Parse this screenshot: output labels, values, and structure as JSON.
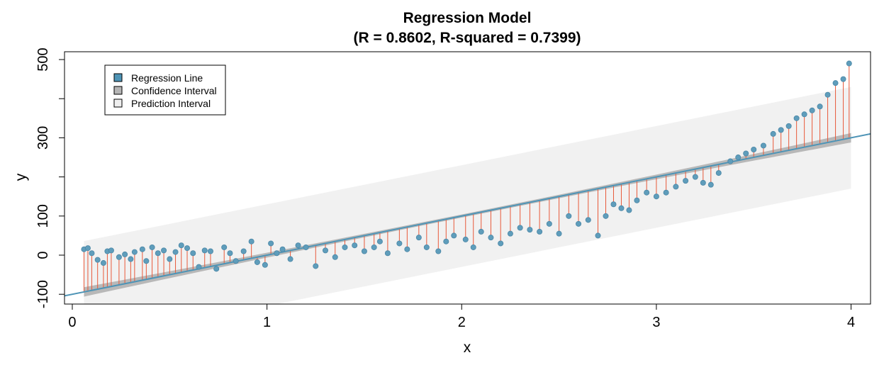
{
  "chart_data": {
    "type": "scatter",
    "title": "Regression Model",
    "subtitle": "(R = 0.8602, R-squared = 0.7399)",
    "xlabel": "x",
    "ylabel": "y",
    "xlim": [
      -0.04,
      4.1
    ],
    "ylim": [
      -125,
      520
    ],
    "x_ticks": [
      0,
      1,
      2,
      3,
      4
    ],
    "x_tick_labels": [
      "0",
      "1",
      "2",
      "3",
      "4"
    ],
    "y_ticks": [
      -100,
      0,
      100,
      300,
      500
    ],
    "y_tick_labels": [
      "-100",
      "0",
      "100",
      "300",
      "500"
    ],
    "y_minor_ticks": [
      200,
      400
    ],
    "grid": false,
    "legend": {
      "position": "top-left",
      "entries": [
        "Regression Line",
        "Confidence Interval",
        "Prediction Interval"
      ]
    },
    "regression": {
      "intercept": -100,
      "slope": 100,
      "x_range": [
        -0.04,
        4.1
      ]
    },
    "confidence_band": {
      "x_range": [
        0.06,
        4.0
      ],
      "half_width_ends": 12,
      "half_width_center": 4
    },
    "prediction_band": {
      "x_range": [
        0.06,
        4.0
      ],
      "half_width": 130
    },
    "points": {
      "x": [
        0.06,
        0.08,
        0.1,
        0.13,
        0.16,
        0.18,
        0.2,
        0.24,
        0.27,
        0.3,
        0.32,
        0.36,
        0.38,
        0.41,
        0.44,
        0.47,
        0.5,
        0.53,
        0.56,
        0.59,
        0.62,
        0.65,
        0.68,
        0.71,
        0.74,
        0.78,
        0.81,
        0.84,
        0.88,
        0.92,
        0.95,
        0.99,
        1.02,
        1.05,
        1.08,
        1.12,
        1.16,
        1.2,
        1.25,
        1.3,
        1.35,
        1.4,
        1.45,
        1.5,
        1.55,
        1.58,
        1.62,
        1.68,
        1.72,
        1.78,
        1.82,
        1.88,
        1.92,
        1.96,
        2.02,
        2.06,
        2.1,
        2.15,
        2.2,
        2.25,
        2.3,
        2.35,
        2.4,
        2.45,
        2.5,
        2.55,
        2.6,
        2.65,
        2.7,
        2.74,
        2.78,
        2.82,
        2.86,
        2.9,
        2.95,
        3.0,
        3.05,
        3.1,
        3.15,
        3.2,
        3.24,
        3.28,
        3.32,
        3.38,
        3.42,
        3.46,
        3.5,
        3.55,
        3.6,
        3.64,
        3.68,
        3.72,
        3.76,
        3.8,
        3.84,
        3.88,
        3.92,
        3.96,
        3.99
      ],
      "y": [
        15,
        18,
        5,
        -12,
        -20,
        10,
        12,
        -5,
        2,
        -10,
        8,
        15,
        -15,
        20,
        5,
        12,
        -10,
        8,
        25,
        18,
        5,
        -30,
        12,
        10,
        -35,
        20,
        5,
        -15,
        10,
        35,
        -18,
        -25,
        30,
        5,
        15,
        -10,
        25,
        20,
        -28,
        12,
        -5,
        20,
        25,
        10,
        20,
        35,
        5,
        30,
        15,
        45,
        20,
        10,
        35,
        50,
        40,
        20,
        60,
        45,
        30,
        55,
        70,
        65,
        60,
        80,
        55,
        100,
        80,
        90,
        50,
        100,
        130,
        120,
        115,
        140,
        160,
        150,
        160,
        175,
        190,
        200,
        185,
        180,
        210,
        240,
        250,
        260,
        270,
        280,
        310,
        320,
        330,
        350,
        360,
        370,
        380,
        410,
        440,
        450,
        490
      ]
    }
  }
}
